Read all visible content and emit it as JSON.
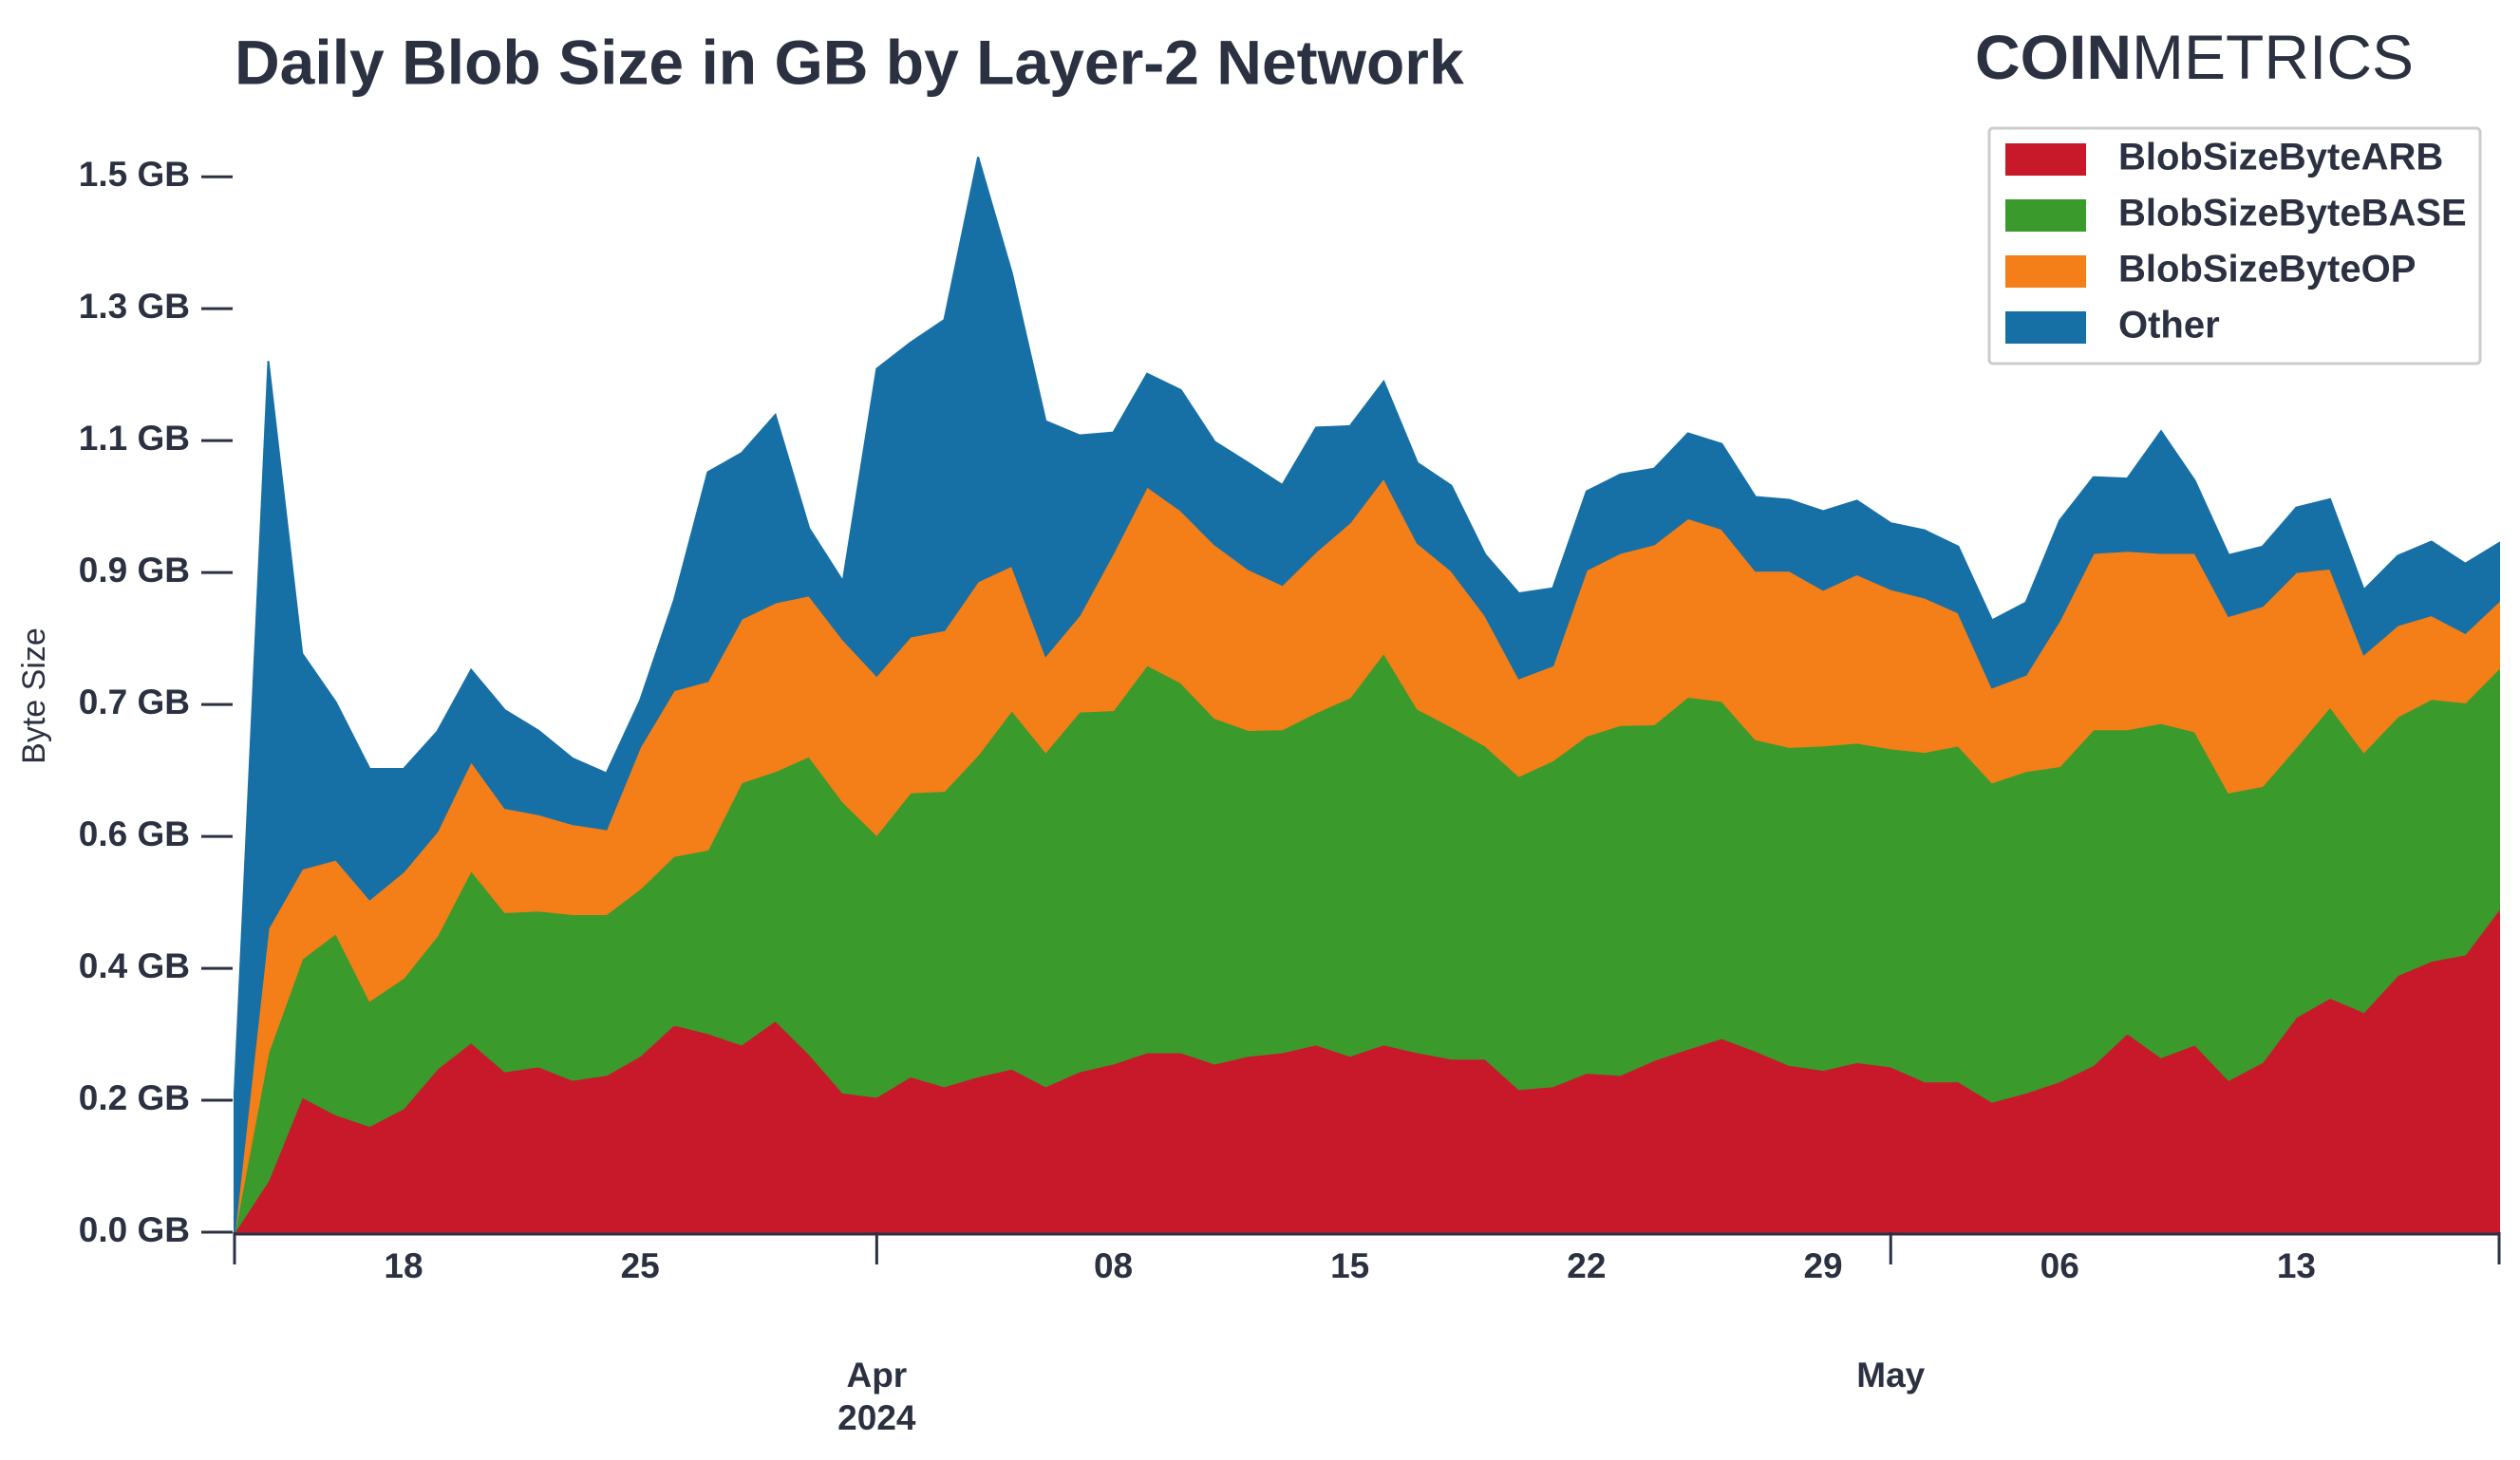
{
  "chart_data": {
    "type": "area",
    "stacked": true,
    "title": "Daily Blob Size in GB by Layer-2 Network",
    "brand": {
      "bold": "COIN",
      "light": "METRICS"
    },
    "ylabel": "Byte Size",
    "x": [
      "2024-03-13",
      "2024-03-14",
      "2024-03-15",
      "2024-03-16",
      "2024-03-17",
      "2024-03-18",
      "2024-03-19",
      "2024-03-20",
      "2024-03-21",
      "2024-03-22",
      "2024-03-23",
      "2024-03-24",
      "2024-03-25",
      "2024-03-26",
      "2024-03-27",
      "2024-03-28",
      "2024-03-29",
      "2024-03-30",
      "2024-03-31",
      "2024-04-01",
      "2024-04-02",
      "2024-04-03",
      "2024-04-04",
      "2024-04-05",
      "2024-04-06",
      "2024-04-07",
      "2024-04-08",
      "2024-04-09",
      "2024-04-10",
      "2024-04-11",
      "2024-04-12",
      "2024-04-13",
      "2024-04-14",
      "2024-04-15",
      "2024-04-16",
      "2024-04-17",
      "2024-04-18",
      "2024-04-19",
      "2024-04-20",
      "2024-04-21",
      "2024-04-22",
      "2024-04-23",
      "2024-04-24",
      "2024-04-25",
      "2024-04-26",
      "2024-04-27",
      "2024-04-28",
      "2024-04-29",
      "2024-04-30",
      "2024-05-01",
      "2024-05-02",
      "2024-05-03",
      "2024-05-04",
      "2024-05-05",
      "2024-05-06",
      "2024-05-07",
      "2024-05-08",
      "2024-05-09",
      "2024-05-10",
      "2024-05-11",
      "2024-05-12",
      "2024-05-13",
      "2024-05-14",
      "2024-05-15",
      "2024-05-16",
      "2024-05-17",
      "2024-05-18",
      "2024-05-19"
    ],
    "series": [
      {
        "name": "BlobSizeByteARB",
        "color": "#c8192a",
        "values": [
          0,
          0.073,
          0.191,
          0.166,
          0.15,
          0.175,
          0.231,
          0.268,
          0.227,
          0.234,
          0.215,
          0.222,
          0.249,
          0.293,
          0.281,
          0.265,
          0.299,
          0.252,
          0.197,
          0.191,
          0.22,
          0.206,
          0.22,
          0.231,
          0.206,
          0.227,
          0.238,
          0.254,
          0.254,
          0.238,
          0.249,
          0.254,
          0.265,
          0.249,
          0.265,
          0.254,
          0.245,
          0.245,
          0.202,
          0.206,
          0.225,
          0.222,
          0.243,
          0.259,
          0.274,
          0.256,
          0.236,
          0.229,
          0.24,
          0.234,
          0.213,
          0.213,
          0.184,
          0.197,
          0.213,
          0.236,
          0.281,
          0.247,
          0.265,
          0.215,
          0.24,
          0.304,
          0.331,
          0.311,
          0.363,
          0.383,
          0.392,
          0.456
        ]
      },
      {
        "name": "BlobSizeByteBASE",
        "color": "#3a9a2c",
        "values": [
          0,
          0.181,
          0.195,
          0.256,
          0.177,
          0.184,
          0.188,
          0.243,
          0.225,
          0.22,
          0.234,
          0.227,
          0.236,
          0.238,
          0.259,
          0.37,
          0.352,
          0.42,
          0.411,
          0.37,
          0.401,
          0.417,
          0.454,
          0.506,
          0.472,
          0.508,
          0.499,
          0.547,
          0.522,
          0.488,
          0.46,
          0.456,
          0.469,
          0.506,
          0.553,
          0.485,
          0.469,
          0.442,
          0.442,
          0.46,
          0.476,
          0.494,
          0.474,
          0.497,
          0.476,
          0.44,
          0.449,
          0.458,
          0.451,
          0.449,
          0.465,
          0.474,
          0.451,
          0.454,
          0.445,
          0.474,
          0.429,
          0.472,
          0.442,
          0.406,
          0.39,
          0.381,
          0.411,
          0.367,
          0.365,
          0.37,
          0.356,
          0.34
        ]
      },
      {
        "name": "BlobSizeByteOP",
        "color": "#f47e17",
        "values": [
          0,
          0.175,
          0.127,
          0.104,
          0.143,
          0.15,
          0.147,
          0.154,
          0.147,
          0.136,
          0.127,
          0.12,
          0.2,
          0.234,
          0.238,
          0.231,
          0.238,
          0.227,
          0.229,
          0.225,
          0.22,
          0.227,
          0.245,
          0.204,
          0.136,
          0.136,
          0.222,
          0.252,
          0.243,
          0.245,
          0.227,
          0.204,
          0.227,
          0.247,
          0.247,
          0.234,
          0.22,
          0.184,
          0.138,
          0.134,
          0.234,
          0.243,
          0.254,
          0.252,
          0.243,
          0.238,
          0.249,
          0.22,
          0.238,
          0.225,
          0.218,
          0.188,
          0.134,
          0.136,
          0.206,
          0.249,
          0.252,
          0.24,
          0.252,
          0.249,
          0.254,
          0.247,
          0.195,
          0.138,
          0.129,
          0.118,
          0.098,
          0.095
        ]
      },
      {
        "name": "Other",
        "color": "#1670a6",
        "values": [
          0.197,
          0.801,
          0.304,
          0.222,
          0.184,
          0.145,
          0.141,
          0.129,
          0.138,
          0.118,
          0.093,
          0.079,
          0.066,
          0.127,
          0.295,
          0.234,
          0.265,
          0.095,
          0.082,
          0.433,
          0.415,
          0.438,
          0.599,
          0.413,
          0.331,
          0.254,
          0.17,
          0.159,
          0.17,
          0.145,
          0.15,
          0.141,
          0.175,
          0.136,
          0.136,
          0.113,
          0.12,
          0.086,
          0.12,
          0.109,
          0.111,
          0.111,
          0.107,
          0.12,
          0.12,
          0.104,
          0.1,
          0.111,
          0.104,
          0.093,
          0.095,
          0.093,
          0.095,
          0.102,
          0.141,
          0.107,
          0.102,
          0.172,
          0.102,
          0.086,
          0.084,
          0.091,
          0.098,
          0.091,
          0.098,
          0.104,
          0.098,
          0.082
        ]
      }
    ],
    "xlim": [
      "2024-03-13",
      "2024-05-19"
    ],
    "xticks": [
      {
        "value": "2024-03-18",
        "label": "18"
      },
      {
        "value": "2024-03-25",
        "label": "25"
      },
      {
        "value": "2024-04-08",
        "label": "08"
      },
      {
        "value": "2024-04-15",
        "label": "15"
      },
      {
        "value": "2024-04-22",
        "label": "22"
      },
      {
        "value": "2024-04-29",
        "label": "29"
      },
      {
        "value": "2024-05-06",
        "label": "06"
      },
      {
        "value": "2024-05-13",
        "label": "13"
      }
    ],
    "month_ticks": [
      {
        "value": "2024-04-01",
        "label": "Apr"
      },
      {
        "value": "2024-05-01",
        "label": "May"
      }
    ],
    "year": "2024",
    "ylim": [
      0,
      1.54
    ],
    "yticks": [
      {
        "value": 0,
        "label": "0.0 GB"
      },
      {
        "value": 0.1863,
        "label": "0.2 GB"
      },
      {
        "value": 0.3725,
        "label": "0.4 GB"
      },
      {
        "value": 0.5588,
        "label": "0.6 GB"
      },
      {
        "value": 0.7451,
        "label": "0.7 GB"
      },
      {
        "value": 0.9313,
        "label": "0.9 GB"
      },
      {
        "value": 1.1176,
        "label": "1.1 GB"
      },
      {
        "value": 1.3039,
        "label": "1.3 GB"
      },
      {
        "value": 1.4901,
        "label": "1.5 GB"
      }
    ],
    "legend": "upper right"
  }
}
